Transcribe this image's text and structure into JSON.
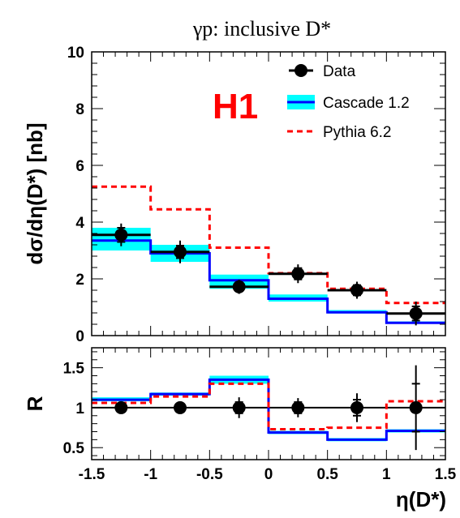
{
  "title": "γp:  inclusive D*",
  "experiment_label": "H1",
  "colors": {
    "data": "#000000",
    "cascade_line": "#0000ff",
    "cascade_band": "#00ffff",
    "pythia": "#ff0000",
    "experiment_label": "#ff0000"
  },
  "chart_data": [
    {
      "type": "line",
      "panel": "top",
      "ylabel": "dσ/dη(D*) [nb]",
      "ylim": [
        0,
        10
      ],
      "xlim": [
        -1.5,
        1.5
      ],
      "xticks": [
        "-1.5",
        "-1",
        "-0.5",
        "0",
        "0.5",
        "1",
        "1.5"
      ],
      "yticks": [
        "0",
        "2",
        "4",
        "6",
        "8",
        "10"
      ],
      "bin_edges": [
        -1.5,
        -1.0,
        -0.5,
        0.0,
        0.5,
        1.0,
        1.5
      ],
      "legend": [
        "Data",
        "Cascade 1.2",
        "Pythia 6.2"
      ],
      "legend_position": "top-right",
      "series": [
        {
          "name": "Data",
          "kind": "points",
          "x": [
            -1.25,
            -0.75,
            -0.25,
            0.25,
            0.75,
            1.25
          ],
          "values": [
            3.55,
            2.95,
            1.72,
            2.18,
            1.6,
            0.78
          ],
          "errors_total": [
            0.4,
            0.4,
            0.25,
            0.33,
            0.3,
            0.42
          ],
          "errors_stat": [
            0.25,
            0.22,
            0.15,
            0.2,
            0.18,
            0.25
          ]
        },
        {
          "name": "Cascade 1.2",
          "kind": "histogram",
          "values": [
            3.35,
            2.9,
            1.95,
            1.3,
            0.82,
            0.45
          ],
          "band_low": [
            3.0,
            2.6,
            1.65,
            1.2,
            0.78,
            0.42
          ],
          "band_high": [
            3.8,
            3.2,
            2.15,
            1.45,
            0.9,
            0.5
          ]
        },
        {
          "name": "Pythia 6.2",
          "kind": "histogram-dashed",
          "values": [
            5.25,
            4.45,
            3.1,
            2.2,
            1.65,
            1.15
          ]
        }
      ]
    },
    {
      "type": "line",
      "panel": "bottom",
      "ylabel": "R",
      "xlabel": "η(D*)",
      "ylim": [
        0.35,
        1.75
      ],
      "xlim": [
        -1.5,
        1.5
      ],
      "xticks": [
        "-1.5",
        "-1",
        "-0.5",
        "0",
        "0.5",
        "1",
        "1.5"
      ],
      "yticks": [
        "0.5",
        "1",
        "1.5"
      ],
      "reference_line": 1,
      "series": [
        {
          "name": "Data",
          "kind": "points",
          "x": [
            -1.25,
            -0.75,
            -0.25,
            0.25,
            0.75,
            1.25
          ],
          "values": [
            1,
            1,
            1,
            1,
            1,
            1
          ],
          "errors_total": [
            0.05,
            0.05,
            0.13,
            0.12,
            0.18,
            0.53
          ],
          "errors_stat": [
            0.03,
            0.03,
            0.07,
            0.07,
            0.1,
            0.3
          ]
        },
        {
          "name": "Cascade 1.2",
          "kind": "histogram",
          "values": [
            1.1,
            1.17,
            1.35,
            0.69,
            0.6,
            0.71
          ],
          "band_low": [
            1.08,
            1.15,
            1.3,
            0.67,
            0.58,
            0.69
          ],
          "band_high": [
            1.13,
            1.19,
            1.4,
            0.71,
            0.62,
            0.73
          ]
        },
        {
          "name": "Pythia 6.2",
          "kind": "histogram-dashed",
          "values": [
            1.06,
            1.14,
            1.3,
            0.73,
            0.75,
            1.08
          ]
        }
      ]
    }
  ]
}
